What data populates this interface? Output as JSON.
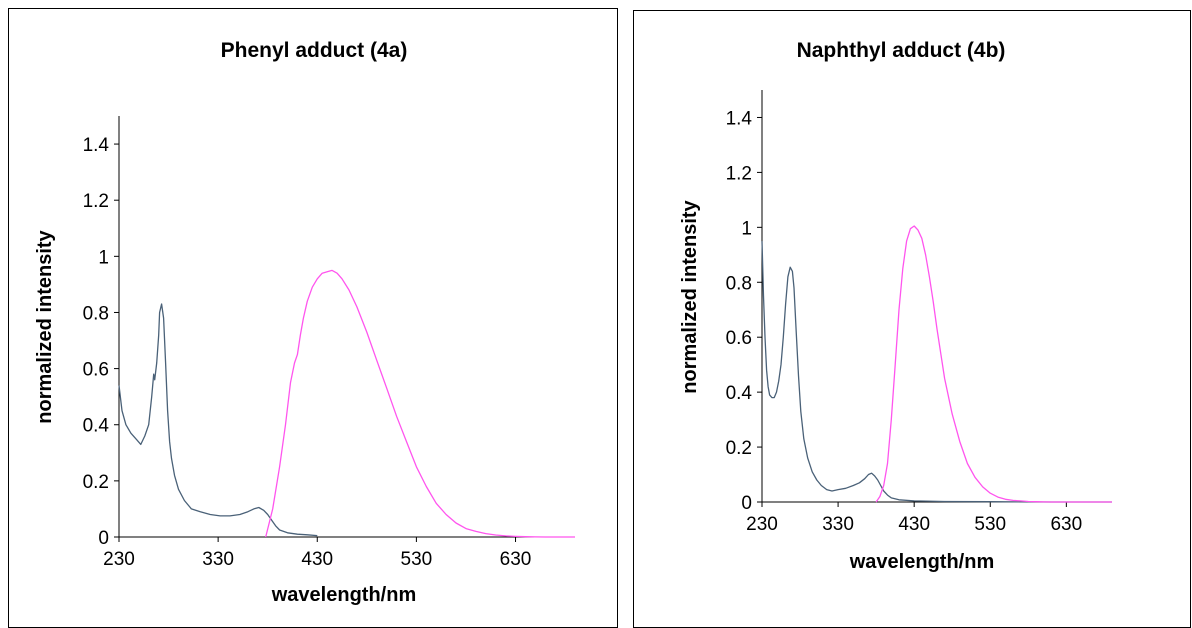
{
  "chart_data": [
    {
      "type": "line",
      "title": "Phenyl adduct  (4a)",
      "xlabel": "wavelength/nm",
      "ylabel": "normalized intensity",
      "xlim": [
        230,
        690
      ],
      "ylim": [
        0,
        1.5
      ],
      "x_ticks": [
        230,
        330,
        430,
        530,
        630
      ],
      "y_ticks": [
        0,
        0.2,
        0.4,
        0.6,
        0.8,
        1,
        1.2,
        1.4
      ],
      "grid": false,
      "legend": "none",
      "series": [
        {
          "color": "#4a6178",
          "x": [
            230,
            233,
            237,
            242,
            247,
            252,
            256,
            260,
            263,
            265,
            266,
            268,
            270,
            271,
            273,
            275,
            277,
            279,
            281,
            283,
            286,
            290,
            296,
            303,
            312,
            322,
            332,
            342,
            352,
            360,
            366,
            371,
            376,
            380,
            384,
            388,
            392,
            400,
            410,
            420,
            430
          ],
          "y": [
            0.54,
            0.45,
            0.4,
            0.37,
            0.35,
            0.33,
            0.36,
            0.4,
            0.5,
            0.58,
            0.56,
            0.62,
            0.72,
            0.8,
            0.83,
            0.78,
            0.62,
            0.45,
            0.34,
            0.28,
            0.22,
            0.17,
            0.13,
            0.1,
            0.09,
            0.08,
            0.075,
            0.075,
            0.08,
            0.09,
            0.1,
            0.105,
            0.095,
            0.08,
            0.06,
            0.04,
            0.025,
            0.015,
            0.01,
            0.008,
            0.005
          ]
        },
        {
          "color": "#ff55ee",
          "x": [
            378,
            385,
            392,
            398,
            403,
            407,
            410,
            413,
            416,
            420,
            425,
            430,
            435,
            440,
            445,
            450,
            455,
            462,
            470,
            480,
            490,
            500,
            510,
            520,
            530,
            540,
            550,
            560,
            570,
            580,
            590,
            600,
            610,
            620,
            630,
            640,
            650,
            660,
            670,
            690
          ],
          "y": [
            0.0,
            0.1,
            0.25,
            0.4,
            0.55,
            0.62,
            0.65,
            0.72,
            0.78,
            0.84,
            0.89,
            0.92,
            0.94,
            0.945,
            0.95,
            0.94,
            0.92,
            0.88,
            0.82,
            0.73,
            0.63,
            0.53,
            0.43,
            0.34,
            0.25,
            0.18,
            0.12,
            0.08,
            0.05,
            0.03,
            0.02,
            0.012,
            0.007,
            0.004,
            0.002,
            0.001,
            0.0005,
            0.0,
            0.0,
            0.0
          ]
        }
      ]
    },
    {
      "type": "line",
      "title": "Naphthyl adduct  (4b)",
      "xlabel": "wavelength/nm",
      "ylabel": "normalized  intensity",
      "xlim": [
        230,
        690
      ],
      "ylim": [
        0,
        1.5
      ],
      "x_ticks": [
        230,
        330,
        430,
        530,
        630
      ],
      "y_ticks": [
        0,
        0.2,
        0.4,
        0.6,
        0.8,
        1,
        1.2,
        1.4
      ],
      "grid": false,
      "legend": "none",
      "series": [
        {
          "color": "#4a6178",
          "x": [
            230,
            232,
            234,
            236,
            238,
            240,
            243,
            246,
            249,
            252,
            255,
            258,
            261,
            264,
            267,
            270,
            272,
            275,
            278,
            281,
            285,
            290,
            296,
            302,
            308,
            315,
            322,
            330,
            340,
            350,
            358,
            365,
            370,
            374,
            378,
            382,
            386,
            390,
            395,
            400,
            410,
            430,
            470,
            530,
            600,
            690
          ],
          "y": [
            0.95,
            0.75,
            0.6,
            0.48,
            0.42,
            0.39,
            0.38,
            0.38,
            0.4,
            0.44,
            0.5,
            0.6,
            0.72,
            0.82,
            0.855,
            0.84,
            0.78,
            0.62,
            0.46,
            0.33,
            0.23,
            0.16,
            0.11,
            0.08,
            0.06,
            0.045,
            0.04,
            0.045,
            0.05,
            0.06,
            0.07,
            0.085,
            0.1,
            0.105,
            0.095,
            0.08,
            0.06,
            0.04,
            0.025,
            0.015,
            0.008,
            0.004,
            0.002,
            0.001,
            0.0,
            0.0
          ]
        },
        {
          "color": "#ff55ee",
          "x": [
            380,
            385,
            390,
            395,
            400,
            405,
            410,
            415,
            420,
            425,
            430,
            435,
            440,
            445,
            450,
            455,
            460,
            465,
            470,
            480,
            490,
            500,
            510,
            520,
            530,
            540,
            550,
            560,
            570,
            580,
            590,
            600,
            610,
            620,
            630,
            640,
            650,
            670,
            690
          ],
          "y": [
            0.0,
            0.02,
            0.06,
            0.14,
            0.3,
            0.5,
            0.7,
            0.85,
            0.95,
            0.995,
            1.005,
            0.99,
            0.96,
            0.9,
            0.82,
            0.73,
            0.63,
            0.54,
            0.45,
            0.32,
            0.22,
            0.14,
            0.09,
            0.055,
            0.032,
            0.018,
            0.01,
            0.006,
            0.004,
            0.002,
            0.001,
            0.0005,
            0.0,
            0.0,
            0.0,
            0.0,
            0.0,
            0.0,
            0.0
          ]
        }
      ]
    }
  ]
}
